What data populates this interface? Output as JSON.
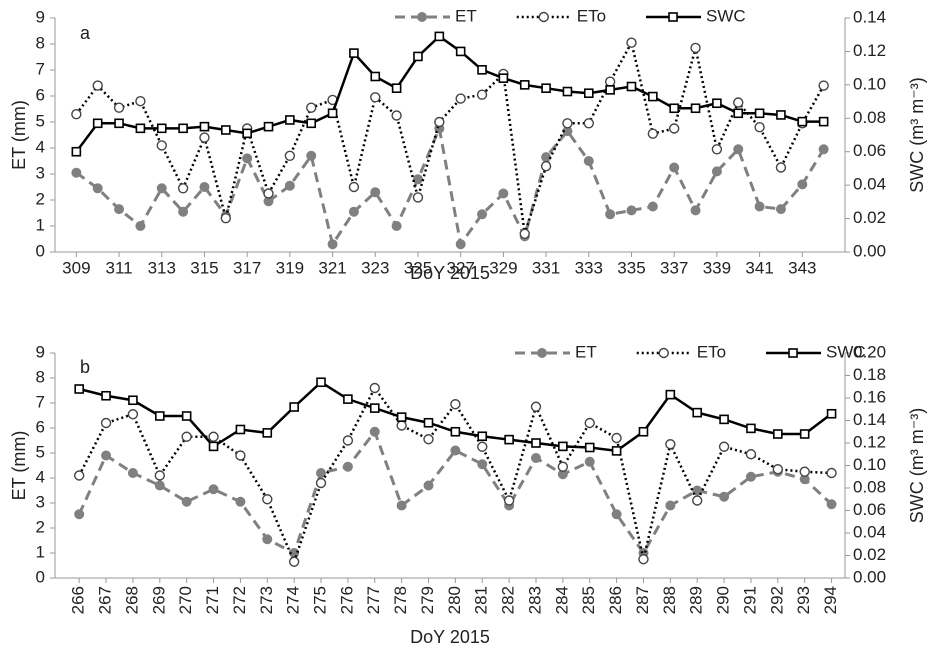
{
  "chart_data": [
    {
      "type": "line",
      "annotation": "a",
      "xlabel": "DoY 2015",
      "ylabel": "ET (mm)",
      "y2label": "SWC (m³ m⁻³)",
      "x": [
        309,
        310,
        311,
        312,
        313,
        314,
        315,
        316,
        317,
        318,
        319,
        320,
        321,
        322,
        323,
        324,
        325,
        326,
        327,
        328,
        329,
        330,
        331,
        332,
        333,
        334,
        335,
        336,
        337,
        338,
        339,
        340,
        341,
        342,
        343,
        344
      ],
      "xlim": [
        308,
        345
      ],
      "xticks": [
        309,
        311,
        313,
        315,
        317,
        319,
        321,
        323,
        325,
        327,
        329,
        331,
        333,
        335,
        337,
        339,
        341,
        343
      ],
      "ylim": [
        0,
        9
      ],
      "yticks": [
        0,
        1,
        2,
        3,
        4,
        5,
        6,
        7,
        8,
        9
      ],
      "y2lim": [
        0,
        0.14
      ],
      "y2ticks": [
        {
          "value": 0,
          "label": "0.00"
        },
        {
          "value": 0.02,
          "label": "0.02"
        },
        {
          "value": 0.04,
          "label": "0.04"
        },
        {
          "value": 0.06,
          "label": "0.06"
        },
        {
          "value": 0.08,
          "label": "0.08"
        },
        {
          "value": 0.1,
          "label": "0.10"
        },
        {
          "value": 0.12,
          "label": "0.12"
        },
        {
          "value": 0.14,
          "label": "0.14"
        }
      ],
      "legend": "top",
      "xlabel_rotation": 0,
      "series": [
        {
          "name": "ET",
          "color": "#808080",
          "line_style": "dashed",
          "marker": "filled-circle",
          "values": [
            3.05,
            2.45,
            1.65,
            1.0,
            2.45,
            1.55,
            2.5,
            1.4,
            3.6,
            1.95,
            2.55,
            3.7,
            0.3,
            1.55,
            2.3,
            1.0,
            2.8,
            4.75,
            0.3,
            1.45,
            2.25,
            0.6,
            3.65,
            4.65,
            3.5,
            1.45,
            1.6,
            1.75,
            3.25,
            1.6,
            3.1,
            3.95,
            1.75,
            1.65,
            2.6,
            3.95
          ]
        },
        {
          "name": "ETo",
          "color": "#000000",
          "line_style": "dotted",
          "marker": "open-circle",
          "values": [
            5.3,
            6.4,
            5.55,
            5.8,
            4.1,
            2.45,
            4.4,
            1.3,
            4.75,
            2.25,
            3.7,
            5.55,
            5.85,
            2.5,
            5.95,
            5.25,
            2.1,
            5.0,
            5.9,
            6.05,
            6.85,
            0.7,
            3.3,
            4.95,
            4.95,
            6.55,
            8.05,
            4.55,
            4.75,
            7.85,
            3.95,
            5.75,
            4.8,
            3.25,
            4.95,
            6.4
          ]
        },
        {
          "name": "SWC",
          "color": "#000000",
          "line_style": "solid",
          "marker": "open-square",
          "axis": "y2",
          "values": [
            0.06,
            0.077,
            0.077,
            0.074,
            0.074,
            0.074,
            0.075,
            0.073,
            0.071,
            0.075,
            0.079,
            0.077,
            0.083,
            0.119,
            0.105,
            0.098,
            0.117,
            0.129,
            0.12,
            0.109,
            0.104,
            0.1,
            0.098,
            0.096,
            0.095,
            0.097,
            0.099,
            0.093,
            0.086,
            0.086,
            0.089,
            0.083,
            0.083,
            0.082,
            0.078,
            0.078
          ]
        }
      ]
    },
    {
      "type": "line",
      "annotation": "b",
      "xlabel": "DoY 2015",
      "ylabel": "ET (mm)",
      "y2label": "SWC (m³ m⁻³)",
      "x": [
        266,
        267,
        268,
        269,
        270,
        271,
        272,
        273,
        274,
        275,
        276,
        277,
        278,
        279,
        280,
        281,
        282,
        283,
        284,
        285,
        286,
        287,
        288,
        289,
        290,
        291,
        292,
        293,
        294
      ],
      "xlim": [
        265.1,
        294.5
      ],
      "xticks": [
        266,
        267,
        268,
        269,
        270,
        271,
        272,
        273,
        274,
        275,
        276,
        277,
        278,
        279,
        280,
        281,
        282,
        283,
        284,
        285,
        286,
        287,
        288,
        289,
        290,
        291,
        292,
        293,
        294
      ],
      "ylim": [
        0,
        9
      ],
      "yticks": [
        0,
        1,
        2,
        3,
        4,
        5,
        6,
        7,
        8,
        9
      ],
      "y2lim": [
        0,
        0.2
      ],
      "y2ticks": [
        {
          "value": 0,
          "label": "0.00"
        },
        {
          "value": 0.02,
          "label": "0.02"
        },
        {
          "value": 0.04,
          "label": "0.04"
        },
        {
          "value": 0.06,
          "label": "0.06"
        },
        {
          "value": 0.08,
          "label": "0.08"
        },
        {
          "value": 0.1,
          "label": "0.10"
        },
        {
          "value": 0.12,
          "label": "0.12"
        },
        {
          "value": 0.14,
          "label": "0.14"
        },
        {
          "value": 0.16,
          "label": "0.16"
        },
        {
          "value": 0.18,
          "label": "0.18"
        },
        {
          "value": 0.2,
          "label": "0.20"
        }
      ],
      "legend": "top",
      "xlabel_rotation": -90,
      "series": [
        {
          "name": "ET",
          "color": "#808080",
          "line_style": "dashed",
          "marker": "filled-circle",
          "values": [
            2.55,
            4.9,
            4.2,
            3.7,
            3.05,
            3.55,
            3.05,
            1.55,
            1.0,
            4.2,
            4.45,
            5.85,
            2.9,
            3.7,
            5.1,
            4.55,
            2.9,
            4.8,
            4.15,
            4.65,
            2.55,
            1.0,
            2.9,
            3.5,
            3.25,
            4.05,
            4.25,
            3.95,
            2.95
          ]
        },
        {
          "name": "ETo",
          "color": "#000000",
          "line_style": "dotted",
          "marker": "open-circle",
          "values": [
            4.1,
            6.2,
            6.55,
            4.1,
            5.65,
            5.65,
            4.9,
            3.15,
            0.65,
            3.8,
            5.5,
            7.6,
            6.1,
            5.55,
            6.95,
            5.25,
            3.1,
            6.85,
            4.45,
            6.2,
            5.6,
            0.75,
            5.35,
            3.1,
            5.25,
            4.95,
            4.35,
            4.25,
            4.2
          ]
        },
        {
          "name": "SWC",
          "color": "#000000",
          "line_style": "solid",
          "marker": "open-square",
          "axis": "y2",
          "values": [
            0.168,
            0.162,
            0.158,
            0.144,
            0.144,
            0.117,
            0.132,
            0.129,
            0.152,
            0.174,
            0.159,
            0.151,
            0.143,
            0.138,
            0.13,
            0.126,
            0.123,
            0.12,
            0.117,
            0.116,
            0.113,
            0.13,
            0.163,
            0.147,
            0.141,
            0.133,
            0.128,
            0.128,
            0.146
          ]
        }
      ]
    }
  ]
}
